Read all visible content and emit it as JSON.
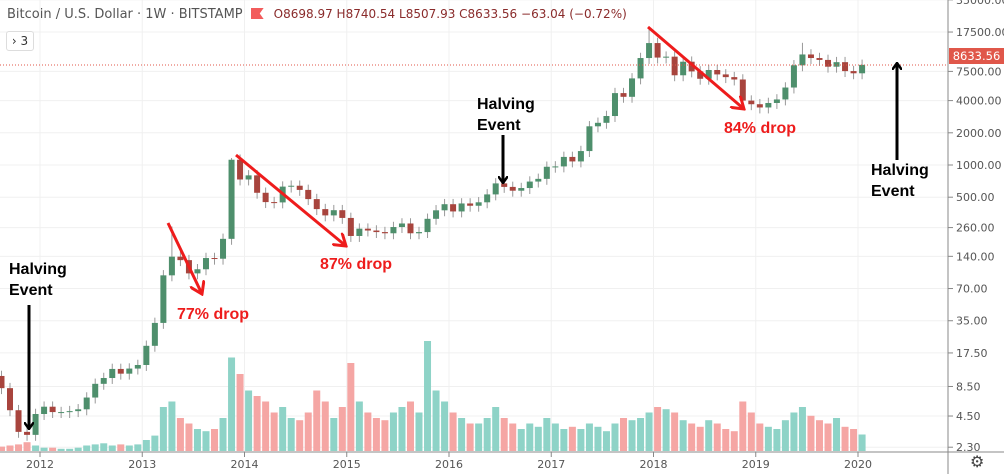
{
  "header": {
    "symbol": "Bitcoin / U.S. Dollar · 1W · BITSTAMP",
    "open": "O8698.97",
    "high": "H8740.54",
    "low": "L8507.93",
    "close": "C8633.56",
    "change": "−63.04 (−0.72%)",
    "indicators_toggle": "› 3"
  },
  "last_price_label": "8633.56",
  "settings_icon": "gear-icon",
  "colors": {
    "up": "#4e8f6c",
    "down": "#a8443d",
    "vol_up": "#8ed3c7",
    "vol_down": "#f5a6a4",
    "last_price": "#e0574a",
    "annotation_red": "#ee1c1c"
  },
  "annotations": {
    "halving_1": [
      "Halving",
      "Event"
    ],
    "halving_2": [
      "Halving",
      "Event"
    ],
    "halving_3": [
      "Halving",
      "Event"
    ],
    "drop_1": "77% drop",
    "drop_2": "87% drop",
    "drop_3": "84% drop"
  },
  "chart_data": {
    "type": "candlestick",
    "scale": "log",
    "grid": true,
    "x_ticks": [
      "2012",
      "2013",
      "2014",
      "2015",
      "2016",
      "2017",
      "2018",
      "2019",
      "2020"
    ],
    "y_ticks": [
      "35000.00",
      "17500.00",
      "7500.00",
      "4000.00",
      "2000.00",
      "1000.00",
      "500.00",
      "260.00",
      "140.00",
      "70.00",
      "35.00",
      "17.50",
      "8.50",
      "4.50",
      "2.30"
    ],
    "y_tick_values": [
      35000,
      17500,
      7500,
      4000,
      2000,
      1000,
      500,
      260,
      140,
      70,
      35,
      17.5,
      8.5,
      4.5,
      2.3
    ],
    "start_month": "2011-08",
    "monthly_close": [
      8.2,
      5.1,
      3.2,
      3.0,
      4.7,
      5.5,
      4.9,
      4.9,
      5.0,
      5.2,
      6.7,
      9.0,
      10.2,
      12.4,
      11.2,
      12.5,
      13.5,
      20.4,
      33.4,
      93,
      139,
      129,
      97,
      106,
      135,
      133,
      204,
      1120,
      732,
      800,
      550,
      450,
      447,
      628,
      640,
      585,
      480,
      387,
      338,
      378,
      320,
      217,
      254,
      244,
      236,
      230,
      263,
      284,
      230,
      236,
      314,
      377,
      430,
      368,
      437,
      416,
      448,
      531,
      673,
      624,
      575,
      609,
      700,
      742,
      963,
      970,
      1190,
      1080,
      1350,
      2300,
      2480,
      2870,
      4700,
      4340,
      6450,
      10000,
      13800,
      10100,
      10300,
      6900,
      9240,
      7500,
      6400,
      7730,
      7030,
      6630,
      6300,
      4000,
      3700,
      3450,
      3800,
      4100,
      5300,
      8550,
      10800,
      10000,
      9600,
      8300,
      9150,
      7550,
      7200,
      8633.56
    ],
    "notable_highs": {
      "2013-04": 266,
      "2013-11": 1163,
      "2017-12": 19666,
      "2019-06": 13880
    },
    "volume_relative": [
      4,
      5,
      6,
      8,
      5,
      3,
      3,
      2,
      2,
      3,
      5,
      6,
      7,
      5,
      6,
      5,
      6,
      10,
      14,
      40,
      45,
      30,
      25,
      20,
      18,
      20,
      30,
      85,
      70,
      55,
      50,
      45,
      35,
      40,
      30,
      28,
      35,
      55,
      45,
      30,
      40,
      80,
      45,
      35,
      30,
      28,
      35,
      40,
      45,
      35,
      100,
      55,
      45,
      35,
      30,
      25,
      25,
      30,
      40,
      30,
      25,
      20,
      25,
      22,
      30,
      25,
      20,
      22,
      20,
      25,
      22,
      18,
      25,
      30,
      28,
      30,
      35,
      40,
      38,
      35,
      28,
      25,
      22,
      28,
      25,
      20,
      18,
      45,
      35,
      25,
      22,
      20,
      28,
      35,
      40,
      32,
      28,
      25,
      30,
      22,
      20,
      15
    ]
  }
}
